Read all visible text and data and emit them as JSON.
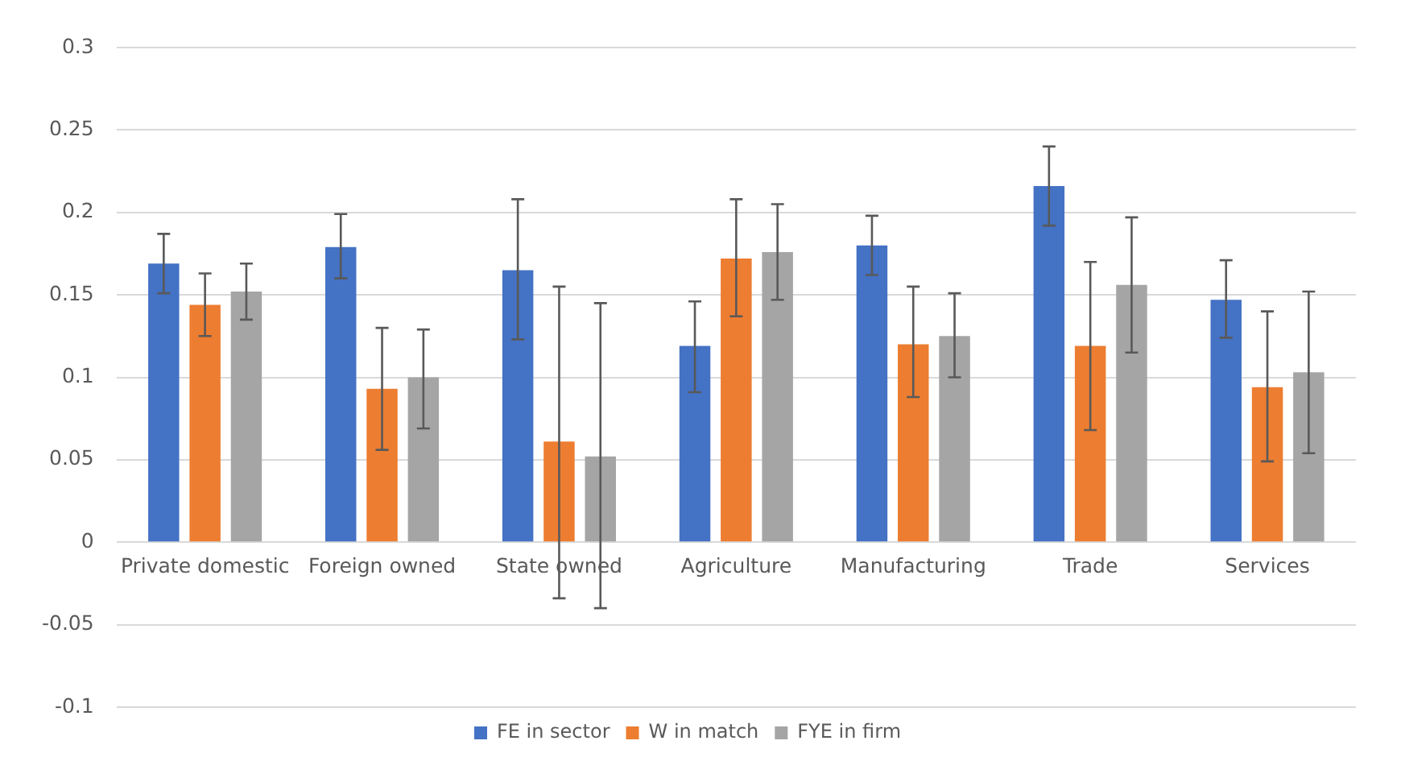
{
  "chart_data": {
    "type": "bar",
    "categories": [
      "Private domestic",
      "Foreign owned",
      "State owned",
      "Agriculture",
      "Manufacturing",
      "Trade",
      "Services"
    ],
    "series": [
      {
        "name": "FE in sector",
        "color": "#4472c4",
        "values": [
          0.169,
          0.179,
          0.165,
          0.119,
          0.18,
          0.216,
          0.147
        ],
        "errors": [
          [
            0.151,
            0.187
          ],
          [
            0.16,
            0.199
          ],
          [
            0.123,
            0.208
          ],
          [
            0.091,
            0.146
          ],
          [
            0.162,
            0.198
          ],
          [
            0.192,
            0.24
          ],
          [
            0.124,
            0.171
          ]
        ]
      },
      {
        "name": "W in match",
        "color": "#ed7d31",
        "values": [
          0.144,
          0.093,
          0.061,
          0.172,
          0.12,
          0.119,
          0.094
        ],
        "errors": [
          [
            0.125,
            0.163
          ],
          [
            0.056,
            0.13
          ],
          [
            -0.034,
            0.155
          ],
          [
            0.137,
            0.208
          ],
          [
            0.088,
            0.155
          ],
          [
            0.068,
            0.17
          ],
          [
            0.049,
            0.14
          ]
        ]
      },
      {
        "name": "FYE in firm",
        "color": "#a5a5a5",
        "values": [
          0.152,
          0.1,
          0.052,
          0.176,
          0.125,
          0.156,
          0.103
        ],
        "errors": [
          [
            0.135,
            0.169
          ],
          [
            0.069,
            0.129
          ],
          [
            -0.04,
            0.145
          ],
          [
            0.147,
            0.205
          ],
          [
            0.1,
            0.151
          ],
          [
            0.115,
            0.197
          ],
          [
            0.054,
            0.152
          ]
        ]
      }
    ],
    "ylim": [
      -0.1,
      0.3
    ],
    "yticks": [
      -0.1,
      -0.05,
      0,
      0.05,
      0.1,
      0.15,
      0.2,
      0.25,
      0.3
    ],
    "grid": "y",
    "legend": "bottom"
  }
}
